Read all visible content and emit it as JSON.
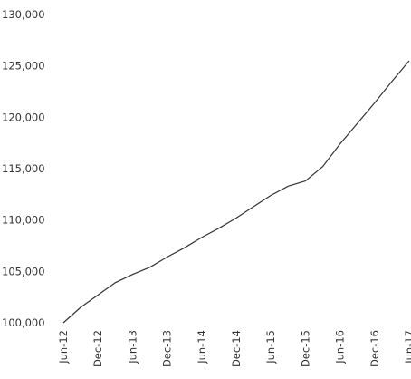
{
  "chart_data": {
    "type": "line",
    "title": "",
    "xlabel": "",
    "ylabel": "",
    "ylim": [
      100000,
      130000
    ],
    "y_ticks": [
      100000,
      105000,
      110000,
      115000,
      120000,
      125000,
      130000
    ],
    "y_tick_labels": [
      "100,000",
      "105,000",
      "110,000",
      "115,000",
      "120,000",
      "125,000",
      "130,000"
    ],
    "x_tick_labels": [
      "Jun-12",
      "Dec-12",
      "Jun-13",
      "Dec-13",
      "Jun-14",
      "Dec-14",
      "Jun-15",
      "Dec-15",
      "Jun-16",
      "Dec-16",
      "Jun-17"
    ],
    "grid": false,
    "legend": "none",
    "line_color": "#333333",
    "series": [
      {
        "x": [
          "Jun-12",
          "Sep-12",
          "Dec-12",
          "Mar-13",
          "Jun-13",
          "Sep-13",
          "Dec-13",
          "Mar-14",
          "Jun-14",
          "Sep-14",
          "Dec-14",
          "Mar-15",
          "Jun-15",
          "Sep-15",
          "Dec-15",
          "Mar-16",
          "Jun-16",
          "Sep-16",
          "Dec-16",
          "Mar-17",
          "Jun-17"
        ],
        "values": [
          100000,
          101500,
          102700,
          103900,
          104700,
          105400,
          106400,
          107300,
          108300,
          109200,
          110200,
          111300,
          112400,
          113300,
          113800,
          115200,
          117400,
          119400,
          121400,
          123500,
          125500
        ]
      }
    ]
  }
}
